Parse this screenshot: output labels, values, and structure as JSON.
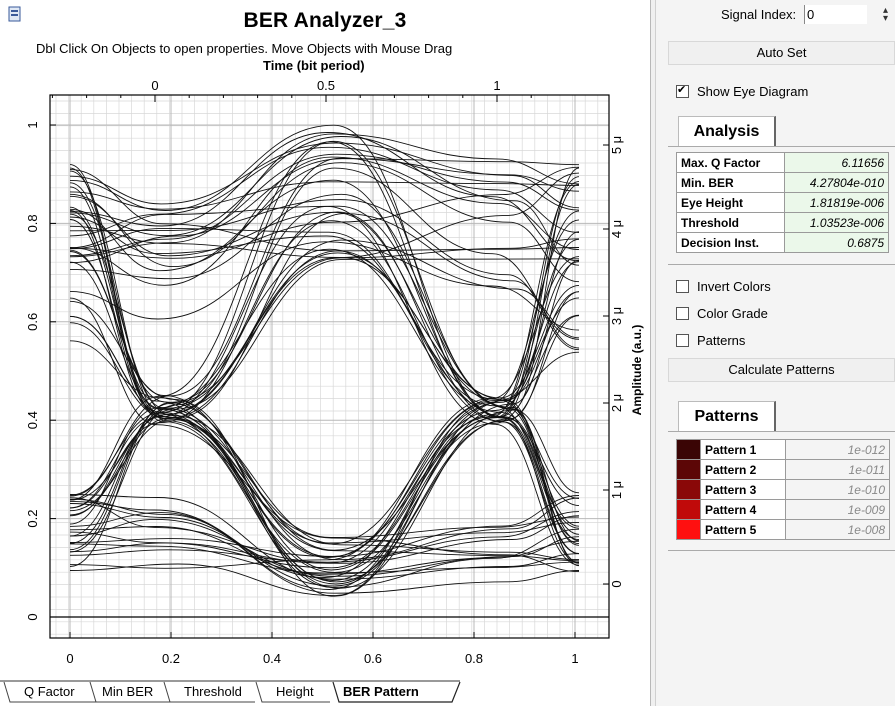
{
  "title": "BER Analyzer_3",
  "hint": "Dbl Click On Objects to open properties.  Move Objects with Mouse Drag",
  "plot": {
    "x_top_title": "Time (bit period)",
    "x_top_ticks": [
      "0",
      "0.5",
      "1"
    ],
    "x_bottom_ticks": [
      "0",
      "0.2",
      "0.4",
      "0.6",
      "0.8",
      "1"
    ],
    "y_left_ticks": [
      "1",
      "0.8",
      "0.6",
      "0.4",
      "0.2",
      "0"
    ],
    "y_right_ticks": [
      "5 μ",
      "4 μ",
      "3 μ",
      "2 μ",
      "1 μ",
      "0"
    ],
    "y_right_title": "Amplitude (a.u.)"
  },
  "tabs": [
    "Q Factor",
    "Min BER",
    "Threshold",
    "Height",
    "BER Pattern"
  ],
  "active_tab": "BER Pattern",
  "panel": {
    "signal_index_label": "Signal Index:",
    "signal_index_value": "0",
    "auto_set": "Auto Set",
    "show_eye_diagram": "Show Eye Diagram",
    "analysis_tab": "Analysis",
    "analysis_rows": [
      {
        "label": "Max. Q Factor",
        "value": "6.11656"
      },
      {
        "label": "Min. BER",
        "value": "4.27804e-010"
      },
      {
        "label": "Eye Height",
        "value": "1.81819e-006"
      },
      {
        "label": "Threshold",
        "value": "1.03523e-006"
      },
      {
        "label": "Decision Inst.",
        "value": "0.6875"
      }
    ],
    "invert_colors": "Invert Colors",
    "color_grade": "Color Grade",
    "patterns_check": "Patterns",
    "calculate_patterns": "Calculate Patterns",
    "patterns_tab": "Patterns",
    "pattern_rows": [
      {
        "label": "Pattern 1",
        "value": "1e-012",
        "color": "#3a0505"
      },
      {
        "label": "Pattern 2",
        "value": "1e-011",
        "color": "#5c0606"
      },
      {
        "label": "Pattern 3",
        "value": "1e-010",
        "color": "#8a0808"
      },
      {
        "label": "Pattern 4",
        "value": "1e-009",
        "color": "#c00a0a"
      },
      {
        "label": "Pattern 5",
        "value": "1e-008",
        "color": "#ff1010"
      }
    ]
  },
  "checkbox_states": {
    "show_eye_diagram": true,
    "invert_colors": false,
    "color_grade": false,
    "patterns": false
  }
}
